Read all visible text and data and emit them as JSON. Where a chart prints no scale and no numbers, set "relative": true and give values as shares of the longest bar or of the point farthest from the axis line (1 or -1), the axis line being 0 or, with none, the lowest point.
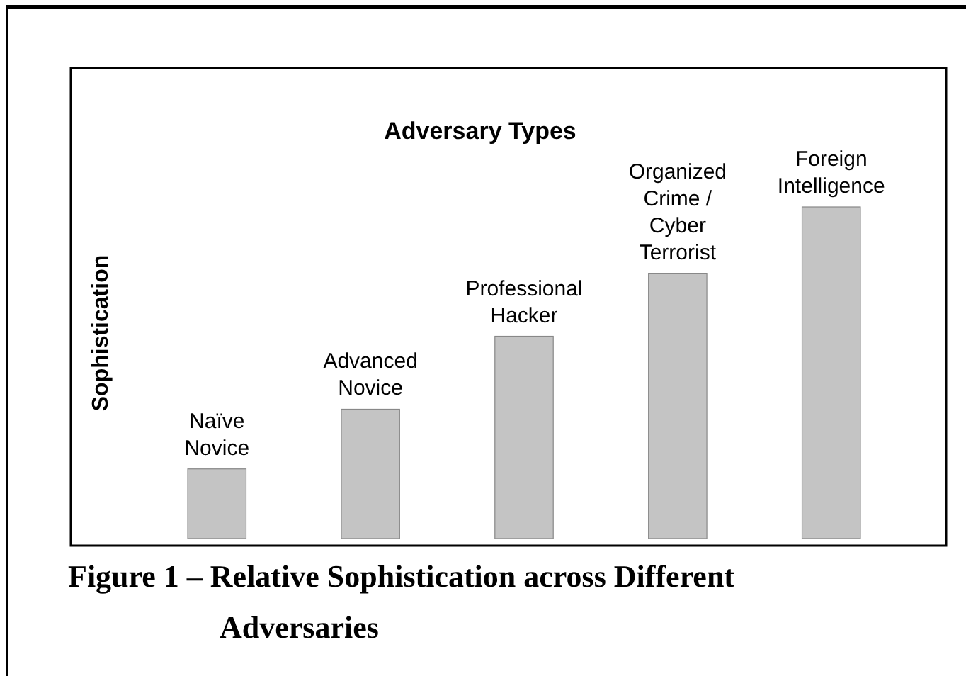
{
  "chart_data": {
    "type": "bar",
    "relative": true,
    "title": "Adversary Types",
    "ylabel": "Sophistication",
    "categories": [
      "Naïve Novice",
      "Advanced Novice",
      "Professional Hacker",
      "Organized Crime / Cyber Terrorist",
      "Foreign Intelligence"
    ],
    "values": [
      0.21,
      0.39,
      0.61,
      0.8,
      1
    ],
    "color": "#c4c4c4",
    "annotations": [
      "Figure 1 – Relative Sophistication across Different Adversaries"
    ]
  }
}
